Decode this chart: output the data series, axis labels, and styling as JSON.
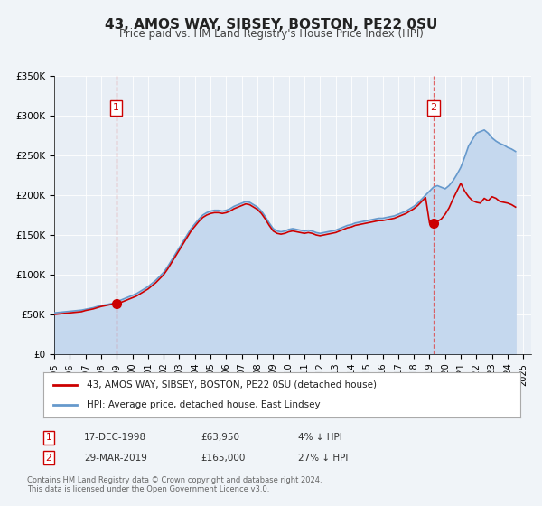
{
  "title": "43, AMOS WAY, SIBSEY, BOSTON, PE22 0SU",
  "subtitle": "Price paid vs. HM Land Registry's House Price Index (HPI)",
  "background_color": "#f0f4f8",
  "plot_bg_color": "#e8eef5",
  "ylabel": "",
  "xlabel": "",
  "ylim": [
    0,
    350000
  ],
  "yticks": [
    0,
    50000,
    100000,
    150000,
    200000,
    250000,
    300000,
    350000
  ],
  "ytick_labels": [
    "£0",
    "£50K",
    "£100K",
    "£150K",
    "£200K",
    "£250K",
    "£300K",
    "£350K"
  ],
  "xmin": 1995.0,
  "xmax": 2025.5,
  "sale1_x": 1998.96,
  "sale1_y": 63950,
  "sale1_label": "1",
  "sale1_date": "17-DEC-1998",
  "sale1_price": "£63,950",
  "sale1_hpi": "4% ↓ HPI",
  "sale2_x": 2019.25,
  "sale2_y": 165000,
  "sale2_label": "2",
  "sale2_date": "29-MAR-2019",
  "sale2_price": "£165,000",
  "sale2_hpi": "27% ↓ HPI",
  "property_line_color": "#cc0000",
  "hpi_line_color": "#6699cc",
  "hpi_fill_color": "#c5d8ee",
  "vline_color": "#dd4444",
  "legend_box_color": "#ffffff",
  "legend_border_color": "#aaaaaa",
  "legend_property_label": "43, AMOS WAY, SIBSEY, BOSTON, PE22 0SU (detached house)",
  "legend_hpi_label": "HPI: Average price, detached house, East Lindsey",
  "footer_text": "Contains HM Land Registry data © Crown copyright and database right 2024.\nThis data is licensed under the Open Government Licence v3.0.",
  "hpi_data_x": [
    1995.0,
    1995.25,
    1995.5,
    1995.75,
    1996.0,
    1996.25,
    1996.5,
    1996.75,
    1997.0,
    1997.25,
    1997.5,
    1997.75,
    1998.0,
    1998.25,
    1998.5,
    1998.75,
    1999.0,
    1999.25,
    1999.5,
    1999.75,
    2000.0,
    2000.25,
    2000.5,
    2000.75,
    2001.0,
    2001.25,
    2001.5,
    2001.75,
    2002.0,
    2002.25,
    2002.5,
    2002.75,
    2003.0,
    2003.25,
    2003.5,
    2003.75,
    2004.0,
    2004.25,
    2004.5,
    2004.75,
    2005.0,
    2005.25,
    2005.5,
    2005.75,
    2006.0,
    2006.25,
    2006.5,
    2006.75,
    2007.0,
    2007.25,
    2007.5,
    2007.75,
    2008.0,
    2008.25,
    2008.5,
    2008.75,
    2009.0,
    2009.25,
    2009.5,
    2009.75,
    2010.0,
    2010.25,
    2010.5,
    2010.75,
    2011.0,
    2011.25,
    2011.5,
    2011.75,
    2012.0,
    2012.25,
    2012.5,
    2012.75,
    2013.0,
    2013.25,
    2013.5,
    2013.75,
    2014.0,
    2014.25,
    2014.5,
    2014.75,
    2015.0,
    2015.25,
    2015.5,
    2015.75,
    2016.0,
    2016.25,
    2016.5,
    2016.75,
    2017.0,
    2017.25,
    2017.5,
    2017.75,
    2018.0,
    2018.25,
    2018.5,
    2018.75,
    2019.0,
    2019.25,
    2019.5,
    2019.75,
    2020.0,
    2020.25,
    2020.5,
    2020.75,
    2021.0,
    2021.25,
    2021.5,
    2021.75,
    2022.0,
    2022.25,
    2022.5,
    2022.75,
    2023.0,
    2023.25,
    2023.5,
    2023.75,
    2024.0,
    2024.25,
    2024.5
  ],
  "hpi_data_y": [
    52000,
    52500,
    53000,
    53500,
    54000,
    54500,
    55000,
    55500,
    56500,
    57500,
    58500,
    60000,
    61000,
    62000,
    63000,
    64000,
    66000,
    68000,
    70000,
    72000,
    74000,
    76000,
    79000,
    82000,
    85000,
    89000,
    93000,
    98000,
    103000,
    110000,
    118000,
    126000,
    134000,
    142000,
    150000,
    158000,
    164000,
    170000,
    175000,
    178000,
    180000,
    181000,
    181000,
    180000,
    181000,
    183000,
    186000,
    188000,
    190000,
    192000,
    191000,
    188000,
    185000,
    180000,
    173000,
    165000,
    158000,
    155000,
    154000,
    155000,
    157000,
    158000,
    157000,
    156000,
    155000,
    156000,
    155000,
    153000,
    152000,
    153000,
    154000,
    155000,
    156000,
    158000,
    160000,
    162000,
    163000,
    165000,
    166000,
    167000,
    168000,
    169000,
    170000,
    171000,
    171000,
    172000,
    173000,
    174000,
    176000,
    178000,
    180000,
    183000,
    186000,
    190000,
    195000,
    200000,
    205000,
    210000,
    212000,
    210000,
    208000,
    212000,
    218000,
    226000,
    235000,
    248000,
    262000,
    270000,
    278000,
    280000,
    282000,
    278000,
    272000,
    268000,
    265000,
    263000,
    260000,
    258000,
    255000
  ],
  "prop_data_x": [
    1995.0,
    1995.25,
    1995.5,
    1995.75,
    1996.0,
    1996.25,
    1996.5,
    1996.75,
    1997.0,
    1997.25,
    1997.5,
    1997.75,
    1998.0,
    1998.25,
    1998.5,
    1998.75,
    1999.0,
    1999.25,
    1999.5,
    1999.75,
    2000.0,
    2000.25,
    2000.5,
    2000.75,
    2001.0,
    2001.25,
    2001.5,
    2001.75,
    2002.0,
    2002.25,
    2002.5,
    2002.75,
    2003.0,
    2003.25,
    2003.5,
    2003.75,
    2004.0,
    2004.25,
    2004.5,
    2004.75,
    2005.0,
    2005.25,
    2005.5,
    2005.75,
    2006.0,
    2006.25,
    2006.5,
    2006.75,
    2007.0,
    2007.25,
    2007.5,
    2007.75,
    2008.0,
    2008.25,
    2008.5,
    2008.75,
    2009.0,
    2009.25,
    2009.5,
    2009.75,
    2010.0,
    2010.25,
    2010.5,
    2010.75,
    2011.0,
    2011.25,
    2011.5,
    2011.75,
    2012.0,
    2012.25,
    2012.5,
    2012.75,
    2013.0,
    2013.25,
    2013.5,
    2013.75,
    2014.0,
    2014.25,
    2014.5,
    2014.75,
    2015.0,
    2015.25,
    2015.5,
    2015.75,
    2016.0,
    2016.25,
    2016.5,
    2016.75,
    2017.0,
    2017.25,
    2017.5,
    2017.75,
    2018.0,
    2018.25,
    2018.5,
    2018.75,
    2019.0,
    2019.25,
    2019.5,
    2019.75,
    2020.0,
    2020.25,
    2020.5,
    2020.75,
    2021.0,
    2021.25,
    2021.5,
    2021.75,
    2022.0,
    2022.25,
    2022.5,
    2022.75,
    2023.0,
    2023.25,
    2023.5,
    2023.75,
    2024.0,
    2024.25,
    2024.5
  ],
  "prop_data_y": [
    50000,
    50500,
    51000,
    51500,
    52000,
    52500,
    53000,
    53500,
    55000,
    56000,
    57000,
    58500,
    60000,
    61000,
    62000,
    63000,
    63950,
    65000,
    67000,
    69000,
    71000,
    73000,
    76000,
    79000,
    82000,
    86000,
    90000,
    95000,
    100000,
    107000,
    115000,
    123000,
    131000,
    139000,
    147000,
    155000,
    161000,
    167000,
    172000,
    175000,
    177000,
    178000,
    178000,
    177000,
    178000,
    180000,
    183000,
    185000,
    187000,
    189000,
    188000,
    185000,
    182000,
    177000,
    170000,
    162000,
    155000,
    152000,
    151000,
    152000,
    154000,
    155000,
    154000,
    153000,
    152000,
    153000,
    152000,
    150000,
    149000,
    150000,
    151000,
    152000,
    153000,
    155000,
    157000,
    159000,
    160000,
    162000,
    163000,
    164000,
    165000,
    166000,
    167000,
    168000,
    168000,
    169000,
    170000,
    171000,
    173000,
    175000,
    177000,
    180000,
    183000,
    187000,
    192000,
    197000,
    165000,
    165000,
    167000,
    170000,
    176000,
    184000,
    195000,
    205000,
    215000,
    205000,
    198000,
    193000,
    191000,
    190000,
    196000,
    193000,
    198000,
    196000,
    192000,
    191000,
    190000,
    188000,
    185000
  ]
}
